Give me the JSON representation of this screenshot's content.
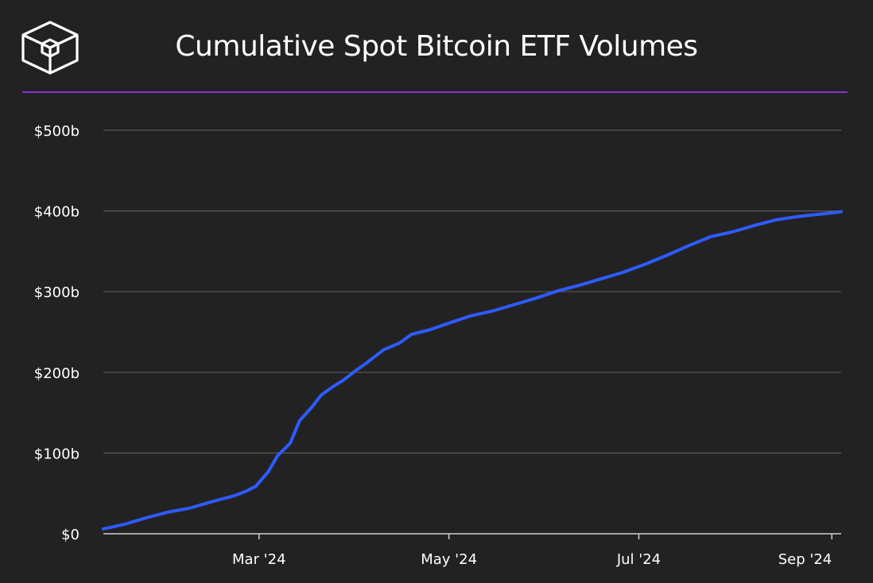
{
  "title": "Cumulative Spot Bitcoin ETF Volumes",
  "brand": {
    "logo_icon": "cube-logo-icon",
    "rule_color": "#8f2fd6"
  },
  "chart_data": {
    "type": "line",
    "title": "Cumulative Spot Bitcoin ETF Volumes",
    "xlabel": "",
    "ylabel": "",
    "x_ticks": [
      "Mar '24",
      "May '24",
      "Jul '24",
      "Sep '24"
    ],
    "x_tick_dates": [
      "2024-03-01",
      "2024-05-01",
      "2024-07-01",
      "2024-09-01"
    ],
    "y_ticks": [
      "$0",
      "$100b",
      "$200b",
      "$300b",
      "$400b",
      "$500b"
    ],
    "y_tick_values": [
      0,
      100,
      200,
      300,
      400,
      500
    ],
    "ylim": [
      0,
      500
    ],
    "xlim": [
      "2024-01-11",
      "2024-09-04"
    ],
    "grid": true,
    "line_color": "#2e5bff",
    "series": [
      {
        "x": [
          "2024-01-11",
          "2024-01-18",
          "2024-01-25",
          "2024-02-01",
          "2024-02-08",
          "2024-02-15",
          "2024-02-22",
          "2024-02-26",
          "2024-02-29",
          "2024-03-04",
          "2024-03-07",
          "2024-03-11",
          "2024-03-14",
          "2024-03-18",
          "2024-03-21",
          "2024-03-25",
          "2024-03-28",
          "2024-04-01",
          "2024-04-05",
          "2024-04-10",
          "2024-04-15",
          "2024-04-19",
          "2024-04-25",
          "2024-05-01",
          "2024-05-08",
          "2024-05-15",
          "2024-05-22",
          "2024-05-29",
          "2024-06-05",
          "2024-06-12",
          "2024-06-19",
          "2024-06-26",
          "2024-07-03",
          "2024-07-10",
          "2024-07-17",
          "2024-07-24",
          "2024-07-31",
          "2024-08-07",
          "2024-08-14",
          "2024-08-21",
          "2024-08-28",
          "2024-09-04"
        ],
        "values": [
          6,
          12,
          20,
          27,
          32,
          40,
          47,
          53,
          59,
          77,
          97,
          112,
          140,
          157,
          172,
          183,
          190,
          202,
          213,
          228,
          236,
          247,
          253,
          261,
          270,
          276,
          284,
          292,
          301,
          308,
          316,
          324,
          334,
          345,
          357,
          368,
          374,
          382,
          389,
          393,
          396,
          399
        ]
      }
    ]
  }
}
